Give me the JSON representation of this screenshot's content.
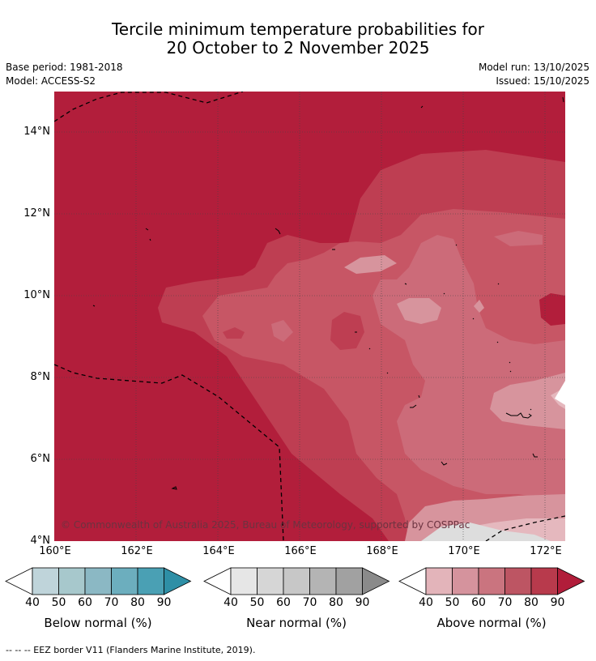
{
  "title_line1": "Tercile minimum temperature probabilities for",
  "title_line2": "20 October to 2 November 2025",
  "base_period": "Base period: 1981-2018",
  "model": "Model: ACCESS-S2",
  "model_run": "Model run: 13/10/2025",
  "issued": "Issued: 15/10/2025",
  "copyright": "© Commonwealth of Australia 2025, Bureau of Meteorology, supported by COSPPac",
  "y_ticks": [
    "14°N",
    "12°N",
    "10°N",
    "8°N",
    "6°N",
    "4°N"
  ],
  "x_ticks": [
    "160°E",
    "162°E",
    "164°E",
    "166°E",
    "168°E",
    "170°E",
    "172°E"
  ],
  "colorbars": [
    {
      "label": "Below normal (%)",
      "ticks": [
        "40",
        "50",
        "60",
        "70",
        "80",
        "90"
      ],
      "colors": [
        "#bfd4da",
        "#a7c8cc",
        "#8bb8c4",
        "#6caebe",
        "#4aa0b4",
        "#2e8fa6"
      ]
    },
    {
      "label": "Near normal (%)",
      "ticks": [
        "40",
        "50",
        "60",
        "70",
        "80",
        "90"
      ],
      "colors": [
        "#e6e6e6",
        "#d6d6d6",
        "#c7c7c7",
        "#b4b4b4",
        "#a1a1a1",
        "#8a8a8a"
      ]
    },
    {
      "label": "Above normal (%)",
      "ticks": [
        "40",
        "50",
        "60",
        "70",
        "80",
        "90"
      ],
      "colors": [
        "#e3b4ba",
        "#d5939d",
        "#ca747f",
        "#bd5563",
        "#b83a4c",
        "#b11d3a"
      ]
    }
  ],
  "footer": "--  --  -- EEZ border V11 (Flanders Marine Institute, 2019).",
  "colors": {
    "above_90": "#b21e3b",
    "above_80": "#be3e52",
    "above_70": "#c75665",
    "above_60": "#cc6b79",
    "above_50": "#d7949d",
    "above_40": "#e5b8be",
    "near_40": "#dddddd"
  }
}
